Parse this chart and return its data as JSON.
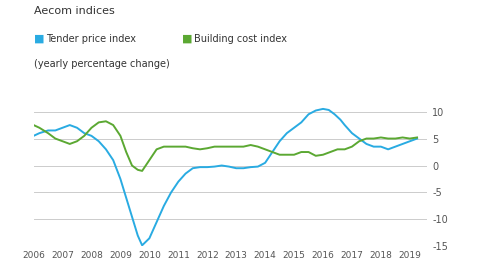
{
  "title": "Aecom indices",
  "legend_line1": "Tender price index",
  "legend_line2": "Building cost index",
  "legend_subtitle": "(yearly percentage change)",
  "tender_color": "#29ABE2",
  "building_color": "#5BA832",
  "background_color": "#ffffff",
  "ylim": [
    -15,
    12
  ],
  "yticks": [
    -15,
    -10,
    -5,
    0,
    5,
    10
  ],
  "grid_color": "#cccccc",
  "tick_color": "#555555",
  "xmin": 2006.0,
  "xmax": 2019.6,
  "tender_x": [
    2006.0,
    2006.2,
    2006.5,
    2006.75,
    2007.0,
    2007.25,
    2007.5,
    2007.75,
    2008.0,
    2008.25,
    2008.5,
    2008.75,
    2009.0,
    2009.2,
    2009.4,
    2009.6,
    2009.75,
    2010.0,
    2010.25,
    2010.5,
    2010.75,
    2011.0,
    2011.25,
    2011.5,
    2011.75,
    2012.0,
    2012.25,
    2012.5,
    2012.75,
    2013.0,
    2013.25,
    2013.5,
    2013.75,
    2014.0,
    2014.25,
    2014.5,
    2014.75,
    2015.0,
    2015.25,
    2015.5,
    2015.75,
    2016.0,
    2016.2,
    2016.4,
    2016.6,
    2016.75,
    2017.0,
    2017.25,
    2017.5,
    2017.75,
    2018.0,
    2018.25,
    2018.5,
    2018.75,
    2019.0,
    2019.25
  ],
  "tender_y": [
    5.5,
    6.0,
    6.5,
    6.5,
    7.0,
    7.5,
    7.0,
    6.0,
    5.5,
    4.5,
    3.0,
    1.0,
    -2.5,
    -6.0,
    -9.5,
    -13.0,
    -14.8,
    -13.5,
    -10.5,
    -7.5,
    -5.0,
    -3.0,
    -1.5,
    -0.5,
    -0.3,
    -0.3,
    -0.2,
    0.0,
    -0.2,
    -0.5,
    -0.5,
    -0.3,
    -0.2,
    0.5,
    2.5,
    4.5,
    6.0,
    7.0,
    8.0,
    9.5,
    10.2,
    10.5,
    10.3,
    9.5,
    8.5,
    7.5,
    6.0,
    5.0,
    4.0,
    3.5,
    3.5,
    3.0,
    3.5,
    4.0,
    4.5,
    5.0
  ],
  "building_x": [
    2006.0,
    2006.2,
    2006.5,
    2006.75,
    2007.0,
    2007.25,
    2007.5,
    2007.75,
    2008.0,
    2008.25,
    2008.5,
    2008.75,
    2009.0,
    2009.2,
    2009.4,
    2009.6,
    2009.75,
    2010.0,
    2010.25,
    2010.5,
    2010.75,
    2011.0,
    2011.25,
    2011.5,
    2011.75,
    2012.0,
    2012.25,
    2012.5,
    2012.75,
    2013.0,
    2013.25,
    2013.5,
    2013.75,
    2014.0,
    2014.25,
    2014.5,
    2014.75,
    2015.0,
    2015.25,
    2015.5,
    2015.75,
    2016.0,
    2016.25,
    2016.5,
    2016.75,
    2017.0,
    2017.25,
    2017.5,
    2017.75,
    2018.0,
    2018.25,
    2018.5,
    2018.75,
    2019.0,
    2019.25
  ],
  "building_y": [
    7.5,
    7.0,
    6.0,
    5.0,
    4.5,
    4.0,
    4.5,
    5.5,
    7.0,
    8.0,
    8.2,
    7.5,
    5.5,
    2.5,
    0.0,
    -0.8,
    -1.0,
    1.0,
    3.0,
    3.5,
    3.5,
    3.5,
    3.5,
    3.2,
    3.0,
    3.2,
    3.5,
    3.5,
    3.5,
    3.5,
    3.5,
    3.8,
    3.5,
    3.0,
    2.5,
    2.0,
    2.0,
    2.0,
    2.5,
    2.5,
    1.8,
    2.0,
    2.5,
    3.0,
    3.0,
    3.5,
    4.5,
    5.0,
    5.0,
    5.2,
    5.0,
    5.0,
    5.2,
    5.0,
    5.2
  ],
  "xtick_years": [
    2006,
    2007,
    2008,
    2009,
    2010,
    2011,
    2012,
    2013,
    2014,
    2015,
    2016,
    2017,
    2018,
    2019
  ]
}
